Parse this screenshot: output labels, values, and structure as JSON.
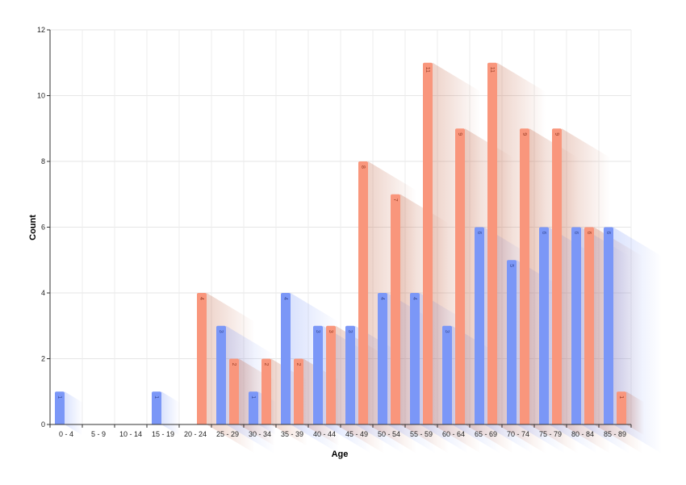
{
  "chart_data": {
    "type": "bar",
    "title": "",
    "xlabel": "Age",
    "ylabel": "Count",
    "ylim": [
      0,
      12
    ],
    "yticks": [
      0,
      2,
      4,
      6,
      8,
      10,
      12
    ],
    "grid": true,
    "legend": "none",
    "categories": [
      "0 - 4",
      "5 - 9",
      "10 - 14",
      "15 - 19",
      "20 - 24",
      "25 - 29",
      "30 - 34",
      "35 - 39",
      "40 - 44",
      "45 - 49",
      "50 - 54",
      "55 - 59",
      "60 - 64",
      "65 - 69",
      "70 - 74",
      "75 - 79",
      "80 - 84",
      "85 - 89"
    ],
    "series": [
      {
        "color": "#7b97f7",
        "label_color": "#3a4f9e",
        "values": [
          1,
          0,
          0,
          1,
          0,
          3,
          1,
          4,
          3,
          3,
          4,
          4,
          3,
          6,
          5,
          6,
          6,
          6
        ]
      },
      {
        "color": "#f9967c",
        "label_color": "#9a3e26",
        "values": [
          0,
          0,
          0,
          0,
          4,
          2,
          2,
          2,
          3,
          8,
          7,
          11,
          9,
          11,
          9,
          9,
          6,
          1
        ]
      }
    ]
  }
}
